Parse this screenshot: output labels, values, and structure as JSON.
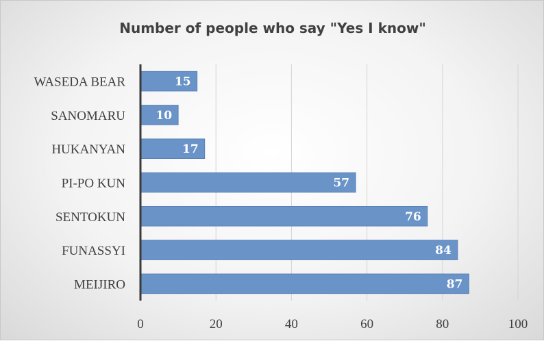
{
  "chart_data": {
    "type": "bar",
    "orientation": "horizontal",
    "title": "Number of people who say \"Yes I know\"",
    "categories": [
      "WASEDA BEAR",
      "SANOMARU",
      "HUKANYAN",
      "PI-PO KUN",
      "SENTOKUN",
      "FUNASSYI",
      "MEIJIRO"
    ],
    "values": [
      15,
      10,
      17,
      57,
      76,
      84,
      87
    ],
    "xticks": [
      "0",
      "20",
      "40",
      "60",
      "80",
      "100"
    ],
    "xlim": [
      0,
      100
    ],
    "grid": "vertical",
    "legend": "none",
    "bar_color": "#6a93c8",
    "bar_border": "#5a82b8",
    "label_color": "#ffffff"
  }
}
